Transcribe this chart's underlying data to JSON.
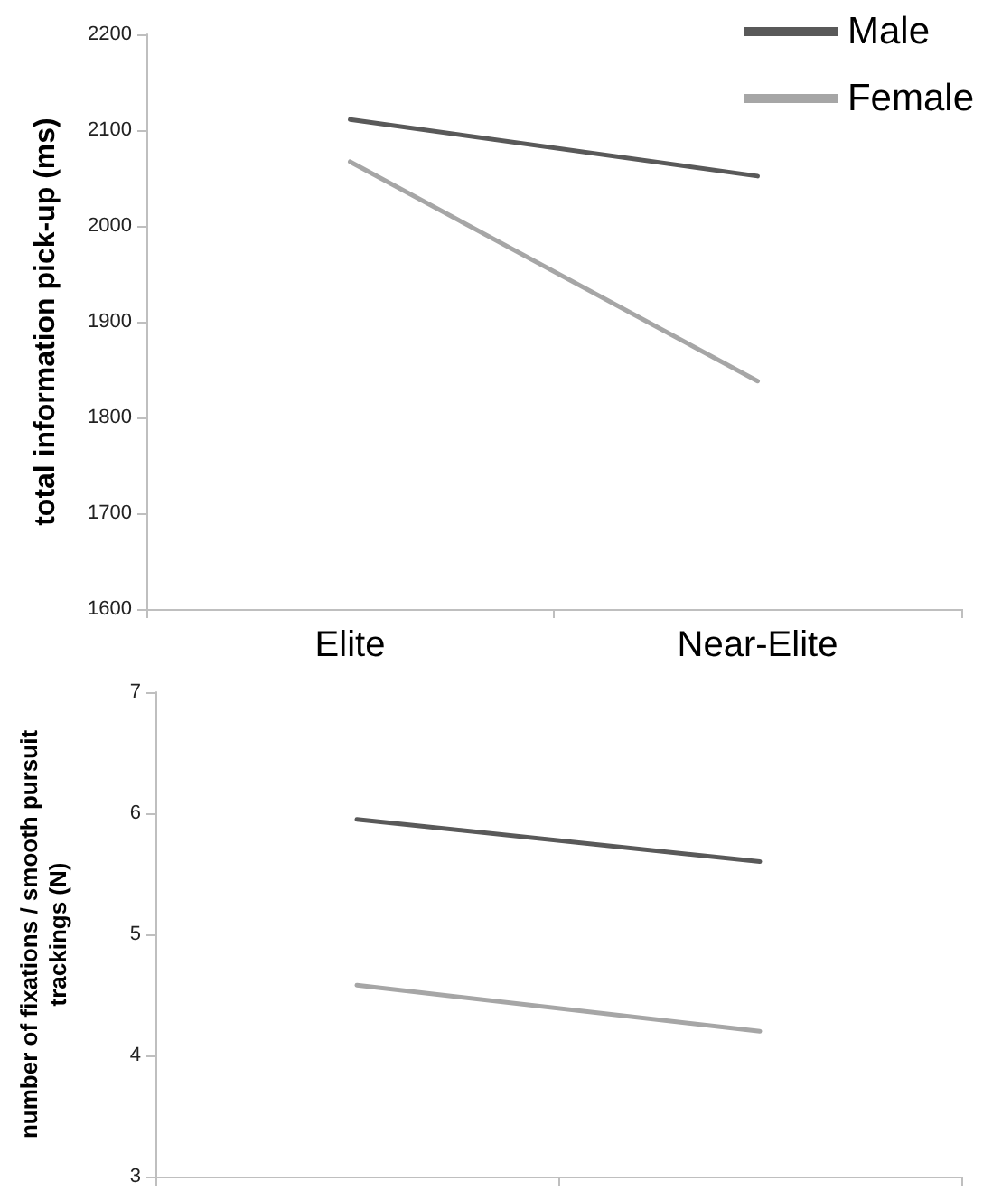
{
  "chart_data": [
    {
      "type": "line",
      "ylabel": "total information pick-up (ms)",
      "categories": [
        "Elite",
        "Near-Elite"
      ],
      "series": [
        {
          "name": "Male",
          "color": "#595959",
          "values": [
            2111,
            2052
          ]
        },
        {
          "name": "Female",
          "color": "#a6a6a6",
          "values": [
            2067,
            1838
          ]
        }
      ],
      "ylim": [
        1600,
        2200
      ],
      "yticks": [
        1600,
        1700,
        1800,
        1900,
        2000,
        2100,
        2200
      ],
      "legend": "top right",
      "marker": "none",
      "line_style": "solid"
    },
    {
      "type": "line",
      "ylabel": "number of fixations / smooth pursuit trackings (N)",
      "categories": [
        null,
        null
      ],
      "series": [
        {
          "color": "#595959",
          "values": [
            5.95,
            5.6
          ]
        },
        {
          "color": "#a6a6a6",
          "values": [
            4.58,
            4.2
          ]
        }
      ],
      "ylim": [
        3,
        7
      ],
      "yticks": [
        3,
        4,
        5,
        6,
        7
      ],
      "marker": "none",
      "line_style": "solid",
      "tick_labels": "y"
    }
  ]
}
